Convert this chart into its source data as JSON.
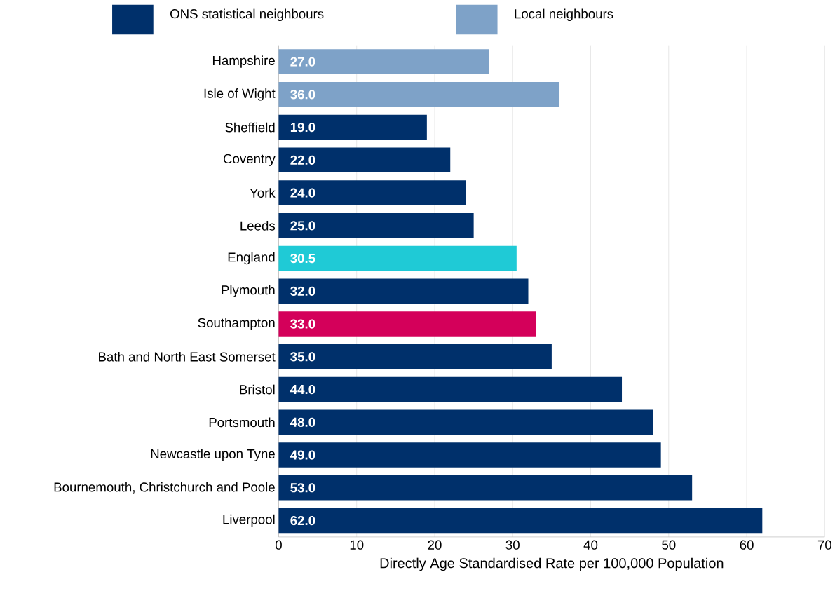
{
  "chart_data": {
    "type": "bar",
    "orientation": "horizontal",
    "xlabel": "Directly Age Standardised Rate per 100,000 Population",
    "categories": [
      "Hampshire",
      "Isle of Wight",
      "Sheffield",
      "Coventry",
      "York",
      "Leeds",
      "England",
      "Plymouth",
      "Southampton",
      "Bath and North East Somerset",
      "Bristol",
      "Portsmouth",
      "Newcastle upon Tyne",
      "Bournemouth, Christchurch and Poole",
      "Liverpool"
    ],
    "series": [
      {
        "name": "ONS statistical neighbours",
        "color": "#00306b",
        "values": [
          null,
          null,
          19,
          22,
          24,
          25,
          null,
          32,
          null,
          35,
          44,
          48,
          49,
          53,
          62
        ],
        "value_labels": [
          null,
          null,
          "19.0",
          "22.0",
          "24.0",
          "25.0",
          null,
          "32.0",
          null,
          "35.0",
          "44.0",
          "48.0",
          "49.0",
          "53.0",
          "62.0"
        ]
      },
      {
        "name": "Local neighbours",
        "color": "#7ea2c8",
        "values": [
          27,
          36,
          null,
          null,
          null,
          null,
          null,
          null,
          null,
          null,
          null,
          null,
          null,
          null,
          null
        ],
        "value_labels": [
          "27.0",
          "36.0",
          null,
          null,
          null,
          null,
          null,
          null,
          null,
          null,
          null,
          null,
          null,
          null,
          null
        ]
      },
      {
        "colors": [
          null,
          null,
          null,
          null,
          null,
          null,
          "#1fcad6",
          null,
          "#d4005a",
          null,
          null,
          null,
          null,
          null,
          null
        ],
        "values": [
          null,
          null,
          null,
          null,
          null,
          null,
          30.5,
          null,
          33,
          null,
          null,
          null,
          null,
          null,
          null
        ],
        "value_labels": [
          null,
          null,
          null,
          null,
          null,
          null,
          "30.5",
          null,
          "33.0",
          null,
          null,
          null,
          null,
          null,
          null
        ]
      }
    ],
    "xlim": [
      0,
      70
    ],
    "xticks": [
      0,
      10,
      20,
      30,
      40,
      50,
      60,
      70
    ],
    "grid": "x",
    "legend": "top"
  }
}
